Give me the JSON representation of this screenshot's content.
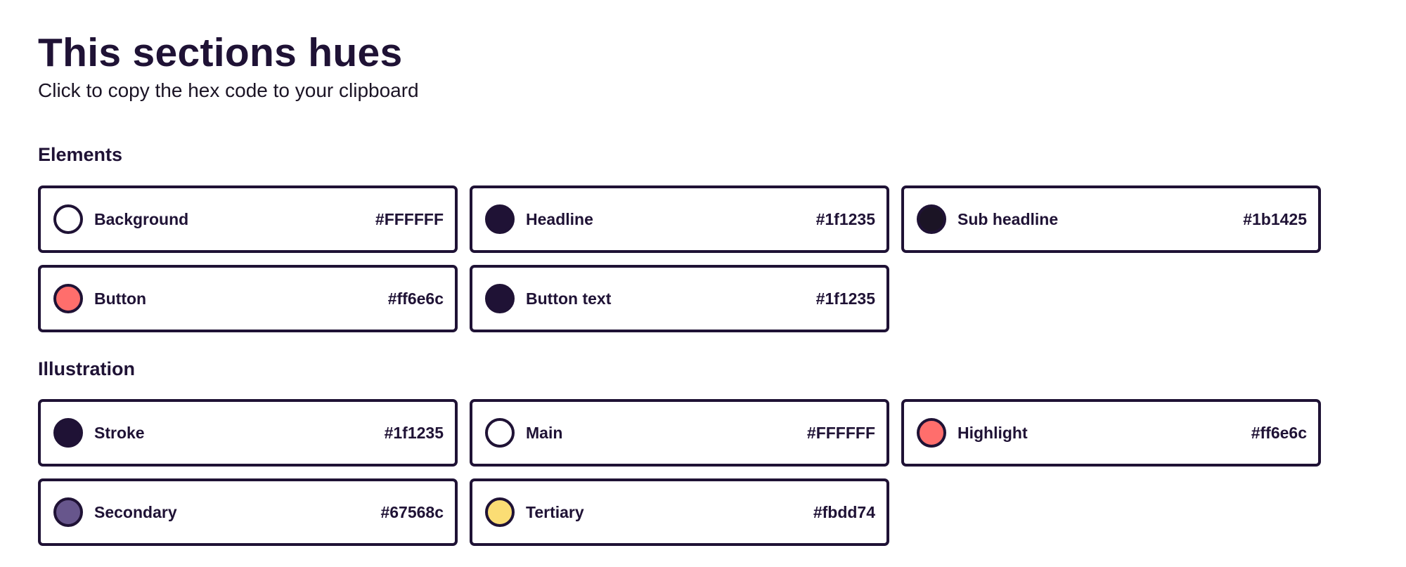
{
  "header": {
    "title": "This sections hues",
    "subtitle": "Click to copy the hex code to your clipboard"
  },
  "sections": [
    {
      "title": "Elements",
      "swatches": [
        {
          "label": "Background",
          "hex": "#FFFFFF",
          "color": "#ffffff"
        },
        {
          "label": "Headline",
          "hex": "#1f1235",
          "color": "#1f1235"
        },
        {
          "label": "Sub headline",
          "hex": "#1b1425",
          "color": "#1b1425"
        },
        {
          "label": "Button",
          "hex": "#ff6e6c",
          "color": "#ff6e6c"
        },
        {
          "label": "Button text",
          "hex": "#1f1235",
          "color": "#1f1235"
        }
      ]
    },
    {
      "title": "Illustration",
      "swatches": [
        {
          "label": "Stroke",
          "hex": "#1f1235",
          "color": "#1f1235"
        },
        {
          "label": "Main",
          "hex": "#FFFFFF",
          "color": "#ffffff"
        },
        {
          "label": "Highlight",
          "hex": "#ff6e6c",
          "color": "#ff6e6c"
        },
        {
          "label": "Secondary",
          "hex": "#67568c",
          "color": "#67568c"
        },
        {
          "label": "Tertiary",
          "hex": "#fbdd74",
          "color": "#fbdd74"
        }
      ]
    }
  ]
}
